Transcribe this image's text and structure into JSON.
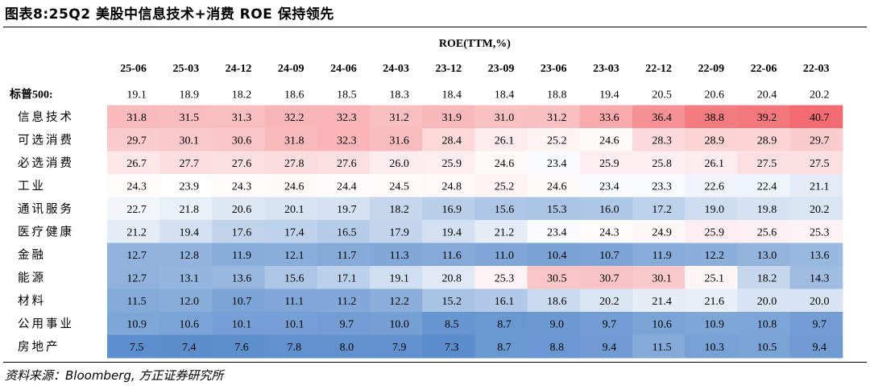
{
  "title": "图表8:25Q2 美股中信息技术+消费 ROE 保持领先",
  "source": "资料来源：Bloomberg, 方正证券研究所",
  "chart_data": {
    "type": "heatmap",
    "title": "ROE(TTM,%)",
    "columns": [
      "25-06",
      "25-03",
      "24-12",
      "24-09",
      "24-06",
      "24-03",
      "23-12",
      "23-09",
      "23-06",
      "23-03",
      "22-12",
      "22-09",
      "22-06",
      "22-03"
    ],
    "rows": [
      {
        "label": "标普500:",
        "values": [
          19.1,
          18.9,
          18.2,
          18.6,
          18.5,
          18.3,
          18.4,
          18.4,
          18.8,
          19.4,
          20.5,
          20.6,
          20.4,
          20.2
        ]
      },
      {
        "label": "信息技术",
        "values": [
          31.8,
          31.5,
          31.3,
          32.2,
          32.3,
          31.2,
          31.9,
          31.0,
          31.2,
          33.6,
          36.4,
          38.8,
          39.2,
          40.7
        ]
      },
      {
        "label": "可选消费",
        "values": [
          29.7,
          30.1,
          30.6,
          31.8,
          32.3,
          31.6,
          28.4,
          26.1,
          25.2,
          24.6,
          28.3,
          28.9,
          28.9,
          29.7
        ]
      },
      {
        "label": "必选消费",
        "values": [
          26.7,
          27.7,
          27.6,
          27.8,
          27.6,
          26.0,
          25.9,
          24.6,
          23.4,
          25.9,
          25.8,
          26.1,
          27.5,
          27.5
        ]
      },
      {
        "label": "工业",
        "values": [
          24.3,
          23.9,
          24.3,
          24.6,
          24.4,
          24.5,
          24.8,
          25.2,
          24.6,
          23.4,
          23.3,
          22.6,
          22.4,
          21.1
        ]
      },
      {
        "label": "通讯服务",
        "values": [
          22.7,
          21.8,
          20.6,
          20.1,
          19.7,
          18.2,
          16.9,
          15.6,
          15.3,
          16.0,
          17.2,
          19.0,
          19.8,
          20.2
        ]
      },
      {
        "label": "医疗健康",
        "values": [
          21.2,
          19.4,
          17.6,
          17.4,
          16.5,
          17.9,
          19.4,
          21.2,
          23.4,
          24.3,
          24.9,
          25.9,
          25.6,
          25.3
        ]
      },
      {
        "label": "金融",
        "values": [
          12.7,
          12.8,
          11.9,
          12.1,
          11.7,
          11.3,
          11.6,
          11.0,
          10.4,
          10.7,
          11.9,
          12.2,
          13.0,
          13.6
        ]
      },
      {
        "label": "能源",
        "values": [
          12.7,
          13.1,
          13.6,
          15.6,
          17.1,
          19.1,
          20.8,
          25.3,
          30.5,
          30.7,
          30.1,
          25.1,
          18.2,
          14.3
        ]
      },
      {
        "label": "材料",
        "values": [
          11.5,
          12.0,
          10.7,
          11.1,
          11.2,
          12.2,
          15.2,
          16.1,
          18.6,
          20.2,
          21.4,
          21.6,
          20.0,
          20.0
        ]
      },
      {
        "label": "公用事业",
        "values": [
          10.9,
          10.6,
          10.1,
          10.1,
          9.7,
          10.0,
          8.5,
          8.7,
          9.0,
          9.7,
          10.6,
          10.9,
          10.8,
          9.7
        ]
      },
      {
        "label": "房地产",
        "values": [
          7.5,
          7.4,
          7.6,
          7.8,
          8.0,
          7.9,
          7.3,
          8.7,
          8.8,
          9.4,
          11.5,
          10.3,
          10.5,
          9.4
        ]
      }
    ],
    "color_scale": {
      "low": "#5b8dcc",
      "mid": "#ffffff",
      "high": "#f26b70"
    },
    "colored_rows": "all sector rows; 标普500 row uncolored"
  }
}
